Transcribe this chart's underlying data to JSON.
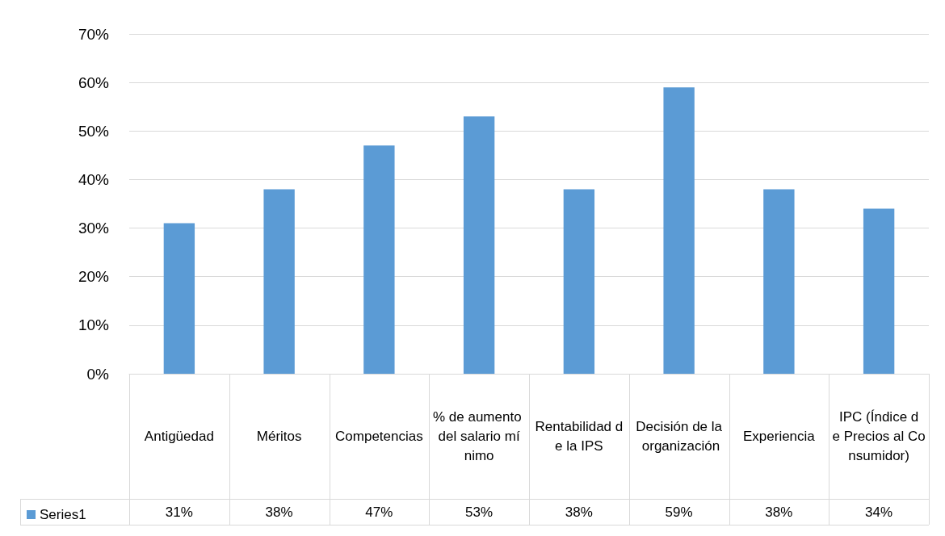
{
  "chart_data": {
    "type": "bar",
    "categories": [
      "Antigüedad",
      "Méritos",
      "Competencias",
      "% de aumento del salario mínimo",
      "Rentabilidad de la IPS",
      "Decisión de la organización",
      "Experiencia",
      "IPC (Índice de Precios al Consumidor)"
    ],
    "series": [
      {
        "name": "Series1",
        "color": "#5b9bd5",
        "values": [
          31,
          38,
          47,
          53,
          38,
          59,
          38,
          34
        ],
        "value_labels": [
          "31%",
          "38%",
          "47%",
          "53%",
          "38%",
          "59%",
          "38%",
          "34%"
        ]
      }
    ],
    "ylim": [
      0,
      70
    ],
    "yticks": [
      {
        "value": 0,
        "label": "0%"
      },
      {
        "value": 10,
        "label": "10%"
      },
      {
        "value": 20,
        "label": "20%"
      },
      {
        "value": 30,
        "label": "30%"
      },
      {
        "value": 40,
        "label": "40%"
      },
      {
        "value": 50,
        "label": "50%"
      },
      {
        "value": 60,
        "label": "60%"
      },
      {
        "value": 70,
        "label": "70%"
      }
    ],
    "grid": "y",
    "legend": "bottom left"
  }
}
